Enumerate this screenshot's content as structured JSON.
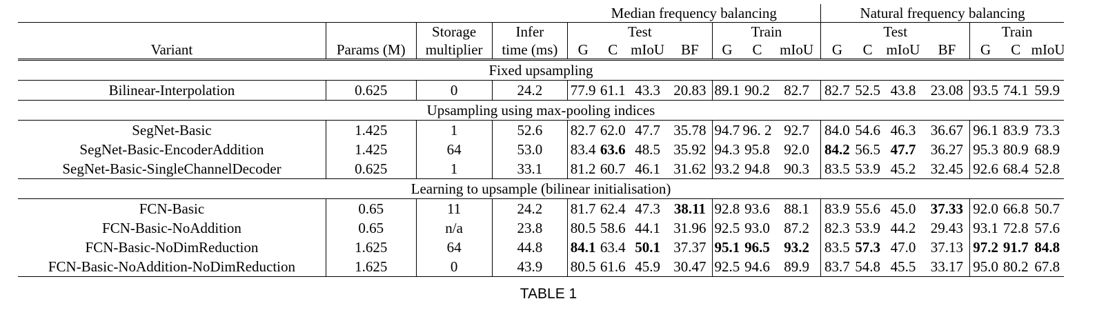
{
  "header": {
    "group1": "Median frequency balancing",
    "group2": "Natural frequency balancing",
    "test": "Test",
    "train": "Train",
    "variant": "Variant",
    "params": "Params (M)",
    "storage_line1": "Storage",
    "storage_line2": "multiplier",
    "infer_line1": "Infer",
    "infer_line2": "time (ms)",
    "test_cols": [
      "G",
      "C",
      "mIoU",
      "BF"
    ],
    "train_cols": [
      "G",
      "C",
      "mIoU"
    ]
  },
  "sections": [
    {
      "title": "Fixed upsampling",
      "rows": [
        {
          "variant": "Bilinear-Interpolation",
          "params": "0.625",
          "storage": "0",
          "infer": "24.2",
          "vals": [
            "77.9",
            "61.1",
            "43.3",
            "20.83",
            "89.1",
            "90.2",
            "82.7",
            "82.7",
            "52.5",
            "43.8",
            "23.08",
            "93.5",
            "74.1",
            "59.9"
          ],
          "bold": []
        }
      ]
    },
    {
      "title": "Upsampling using max-pooling indices",
      "rows": [
        {
          "variant": "SegNet-Basic",
          "params": "1.425",
          "storage": "1",
          "infer": "52.6",
          "vals": [
            "82.7",
            "62.0",
            "47.7",
            "35.78",
            "94.7",
            "96. 2",
            "92.7",
            "84.0",
            "54.6",
            "46.3",
            "36.67",
            "96.1",
            "83.9",
            "73.3"
          ],
          "bold": []
        },
        {
          "variant": "SegNet-Basic-EncoderAddition",
          "params": "1.425",
          "storage": "64",
          "infer": "53.0",
          "vals": [
            "83.4",
            "63.6",
            "48.5",
            "35.92",
            "94.3",
            "95.8",
            "92.0",
            "84.2",
            "56.5",
            "47.7",
            "36.27",
            "95.3",
            "80.9",
            "68.9"
          ],
          "bold": [
            1,
            7,
            9
          ]
        },
        {
          "variant": "SegNet-Basic-SingleChannelDecoder",
          "params": "0.625",
          "storage": "1",
          "infer": "33.1",
          "vals": [
            "81.2",
            "60.7",
            "46.1",
            "31.62",
            "93.2",
            "94.8",
            "90.3",
            "83.5",
            "53.9",
            "45.2",
            "32.45",
            "92.6",
            "68.4",
            "52.8"
          ],
          "bold": []
        }
      ]
    },
    {
      "title": "Learning to upsample (bilinear initialisation)",
      "rows": [
        {
          "variant": "FCN-Basic",
          "params": "0.65",
          "storage": "11",
          "infer": "24.2",
          "vals": [
            "81.7",
            "62.4",
            "47.3",
            "38.11",
            "92.8",
            "93.6",
            "88.1",
            "83.9",
            "55.6",
            "45.0",
            "37.33",
            "92.0",
            "66.8",
            "50.7"
          ],
          "bold": [
            3,
            10
          ]
        },
        {
          "variant": "FCN-Basic-NoAddition",
          "params": "0.65",
          "storage": "n/a",
          "infer": "23.8",
          "vals": [
            "80.5",
            "58.6",
            "44.1",
            "31.96",
            "92.5",
            "93.0",
            "87.2",
            "82.3",
            "53.9",
            "44.2",
            "29.43",
            "93.1",
            "72.8",
            "57.6"
          ],
          "bold": []
        },
        {
          "variant": "FCN-Basic-NoDimReduction",
          "params": "1.625",
          "storage": "64",
          "infer": "44.8",
          "vals": [
            "84.1",
            "63.4",
            "50.1",
            "37.37",
            "95.1",
            "96.5",
            "93.2",
            "83.5",
            "57.3",
            "47.0",
            "37.13",
            "97.2",
            "91.7",
            "84.8"
          ],
          "bold": [
            0,
            2,
            4,
            5,
            6,
            8,
            11,
            12,
            13
          ]
        },
        {
          "variant": "FCN-Basic-NoAddition-NoDimReduction",
          "params": "1.625",
          "storage": "0",
          "infer": "43.9",
          "vals": [
            "80.5",
            "61.6",
            "45.9",
            "30.47",
            "92.5",
            "94.6",
            "89.9",
            "83.7",
            "54.8",
            "45.5",
            "33.17",
            "95.0",
            "80.2",
            "67.8"
          ],
          "bold": []
        }
      ]
    }
  ],
  "caption": "TABLE 1"
}
